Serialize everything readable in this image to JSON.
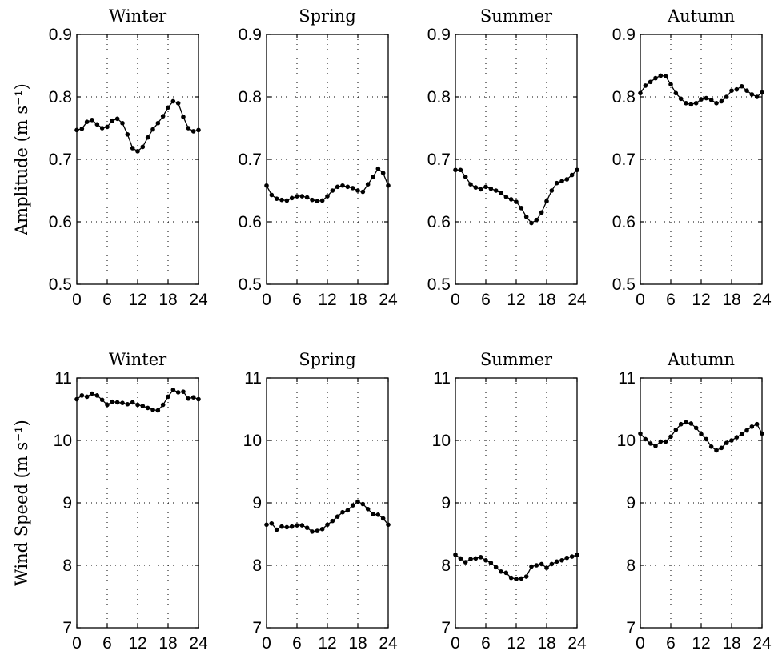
{
  "chart_data": [
    {
      "type": "line",
      "title": "Winter",
      "ylabel": "Amplitude (m s⁻¹)",
      "xlabel": "",
      "xlim": [
        0,
        24
      ],
      "ylim": [
        0.5,
        0.9
      ],
      "xticks": [
        "0",
        "6",
        "12",
        "18",
        "24"
      ],
      "yticks": [
        "0.5",
        "0.6",
        "0.7",
        "0.8",
        "0.9"
      ],
      "grid": true,
      "x": [
        0,
        1,
        2,
        3,
        4,
        5,
        6,
        7,
        8,
        9,
        10,
        11,
        12,
        13,
        14,
        15,
        16,
        17,
        18,
        19,
        20,
        21,
        22,
        23,
        24
      ],
      "values": [
        0.747,
        0.749,
        0.76,
        0.763,
        0.756,
        0.75,
        0.752,
        0.762,
        0.765,
        0.758,
        0.74,
        0.718,
        0.713,
        0.72,
        0.735,
        0.748,
        0.758,
        0.769,
        0.783,
        0.793,
        0.79,
        0.768,
        0.75,
        0.745,
        0.747
      ]
    },
    {
      "type": "line",
      "title": "Spring",
      "ylabel": "",
      "xlabel": "",
      "xlim": [
        0,
        24
      ],
      "ylim": [
        0.5,
        0.9
      ],
      "xticks": [
        "0",
        "6",
        "12",
        "18",
        "24"
      ],
      "yticks": [
        "0.5",
        "0.6",
        "0.7",
        "0.8",
        "0.9"
      ],
      "grid": true,
      "x": [
        0,
        1,
        2,
        3,
        4,
        5,
        6,
        7,
        8,
        9,
        10,
        11,
        12,
        13,
        14,
        15,
        16,
        17,
        18,
        19,
        20,
        21,
        22,
        23,
        24
      ],
      "values": [
        0.658,
        0.643,
        0.637,
        0.635,
        0.634,
        0.638,
        0.641,
        0.641,
        0.639,
        0.635,
        0.633,
        0.634,
        0.641,
        0.65,
        0.656,
        0.658,
        0.656,
        0.654,
        0.65,
        0.648,
        0.66,
        0.672,
        0.685,
        0.678,
        0.658
      ]
    },
    {
      "type": "line",
      "title": "Summer",
      "ylabel": "",
      "xlabel": "",
      "xlim": [
        0,
        24
      ],
      "ylim": [
        0.5,
        0.9
      ],
      "xticks": [
        "0",
        "6",
        "12",
        "18",
        "24"
      ],
      "yticks": [
        "0.5",
        "0.6",
        "0.7",
        "0.8",
        "0.9"
      ],
      "grid": true,
      "x": [
        0,
        1,
        2,
        3,
        4,
        5,
        6,
        7,
        8,
        9,
        10,
        11,
        12,
        13,
        14,
        15,
        16,
        17,
        18,
        19,
        20,
        21,
        22,
        23,
        24
      ],
      "values": [
        0.683,
        0.683,
        0.672,
        0.66,
        0.655,
        0.652,
        0.656,
        0.653,
        0.65,
        0.646,
        0.64,
        0.636,
        0.632,
        0.622,
        0.608,
        0.598,
        0.603,
        0.615,
        0.633,
        0.65,
        0.662,
        0.665,
        0.668,
        0.675,
        0.683
      ]
    },
    {
      "type": "line",
      "title": "Autumn",
      "ylabel": "",
      "xlabel": "",
      "xlim": [
        0,
        24
      ],
      "ylim": [
        0.5,
        0.9
      ],
      "xticks": [
        "0",
        "6",
        "12",
        "18",
        "24"
      ],
      "yticks": [
        "0.5",
        "0.6",
        "0.7",
        "0.8",
        "0.9"
      ],
      "grid": true,
      "x": [
        0,
        1,
        2,
        3,
        4,
        5,
        6,
        7,
        8,
        9,
        10,
        11,
        12,
        13,
        14,
        15,
        16,
        17,
        18,
        19,
        20,
        21,
        22,
        23,
        24
      ],
      "values": [
        0.806,
        0.818,
        0.824,
        0.83,
        0.834,
        0.833,
        0.82,
        0.806,
        0.797,
        0.79,
        0.788,
        0.79,
        0.796,
        0.798,
        0.795,
        0.79,
        0.793,
        0.8,
        0.81,
        0.812,
        0.817,
        0.81,
        0.804,
        0.8,
        0.807
      ]
    },
    {
      "type": "line",
      "title": "Winter",
      "ylabel": "Wind Speed (m s⁻¹)",
      "xlabel": "",
      "xlim": [
        0,
        24
      ],
      "ylim": [
        7,
        11
      ],
      "xticks": [
        "0",
        "6",
        "12",
        "18",
        "24"
      ],
      "yticks": [
        "7",
        "8",
        "9",
        "10",
        "11"
      ],
      "grid": true,
      "x": [
        0,
        1,
        2,
        3,
        4,
        5,
        6,
        7,
        8,
        9,
        10,
        11,
        12,
        13,
        14,
        15,
        16,
        17,
        18,
        19,
        20,
        21,
        22,
        23,
        24
      ],
      "values": [
        10.66,
        10.72,
        10.7,
        10.75,
        10.72,
        10.65,
        10.57,
        10.62,
        10.61,
        10.6,
        10.58,
        10.61,
        10.57,
        10.55,
        10.52,
        10.49,
        10.48,
        10.57,
        10.7,
        10.81,
        10.77,
        10.78,
        10.67,
        10.69,
        10.66
      ]
    },
    {
      "type": "line",
      "title": "Spring",
      "ylabel": "",
      "xlabel": "",
      "xlim": [
        0,
        24
      ],
      "ylim": [
        7,
        11
      ],
      "xticks": [
        "0",
        "6",
        "12",
        "18",
        "24"
      ],
      "yticks": [
        "7",
        "8",
        "9",
        "10",
        "11"
      ],
      "grid": true,
      "x": [
        0,
        1,
        2,
        3,
        4,
        5,
        6,
        7,
        8,
        9,
        10,
        11,
        12,
        13,
        14,
        15,
        16,
        17,
        18,
        19,
        20,
        21,
        22,
        23,
        24
      ],
      "values": [
        8.65,
        8.67,
        8.57,
        8.62,
        8.61,
        8.62,
        8.64,
        8.64,
        8.6,
        8.54,
        8.55,
        8.58,
        8.65,
        8.71,
        8.78,
        8.85,
        8.88,
        8.96,
        9.02,
        8.98,
        8.9,
        8.82,
        8.81,
        8.75,
        8.65
      ]
    },
    {
      "type": "line",
      "title": "Summer",
      "ylabel": "",
      "xlabel": "",
      "xlim": [
        0,
        24
      ],
      "ylim": [
        7,
        11
      ],
      "xticks": [
        "0",
        "6",
        "12",
        "18",
        "24"
      ],
      "yticks": [
        "7",
        "8",
        "9",
        "10",
        "11"
      ],
      "grid": true,
      "x": [
        0,
        1,
        2,
        3,
        4,
        5,
        6,
        7,
        8,
        9,
        10,
        11,
        12,
        13,
        14,
        15,
        16,
        17,
        18,
        19,
        20,
        21,
        22,
        23,
        24
      ],
      "values": [
        8.17,
        8.11,
        8.05,
        8.1,
        8.11,
        8.13,
        8.08,
        8.04,
        7.97,
        7.9,
        7.88,
        7.8,
        7.78,
        7.79,
        7.82,
        7.98,
        8.0,
        8.02,
        7.96,
        8.02,
        8.06,
        8.08,
        8.12,
        8.14,
        8.17
      ]
    },
    {
      "type": "line",
      "title": "Autumn",
      "ylabel": "",
      "xlabel": "",
      "xlim": [
        0,
        24
      ],
      "ylim": [
        7,
        11
      ],
      "xticks": [
        "0",
        "6",
        "12",
        "18",
        "24"
      ],
      "yticks": [
        "7",
        "8",
        "9",
        "10",
        "11"
      ],
      "grid": true,
      "x": [
        0,
        1,
        2,
        3,
        4,
        5,
        6,
        7,
        8,
        9,
        10,
        11,
        12,
        13,
        14,
        15,
        16,
        17,
        18,
        19,
        20,
        21,
        22,
        23,
        24
      ],
      "values": [
        10.11,
        10.02,
        9.95,
        9.91,
        9.98,
        9.98,
        10.06,
        10.17,
        10.26,
        10.29,
        10.27,
        10.2,
        10.1,
        10.02,
        9.9,
        9.84,
        9.88,
        9.96,
        10.0,
        10.05,
        10.1,
        10.16,
        10.22,
        10.26,
        10.11
      ]
    }
  ]
}
